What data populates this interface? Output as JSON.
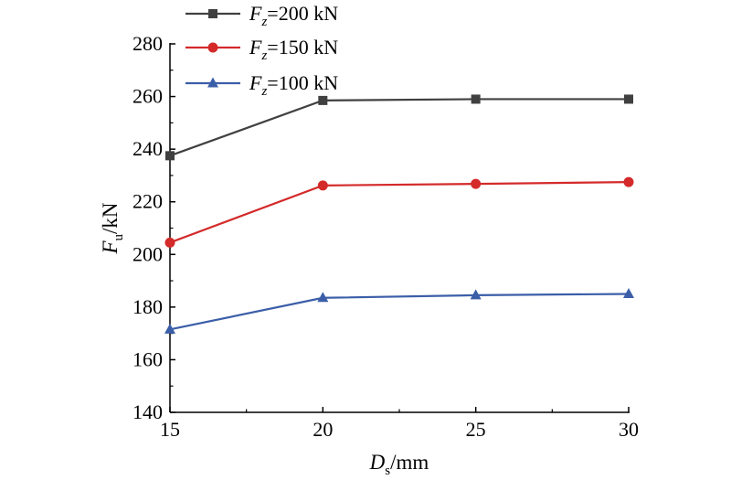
{
  "chart_data": {
    "type": "line",
    "x": [
      15,
      20,
      25,
      30
    ],
    "xlim": [
      15,
      30
    ],
    "ylim": [
      140,
      280
    ],
    "xticks": [
      "15",
      "20",
      "25",
      "30"
    ],
    "yticks": [
      "140",
      "160",
      "180",
      "200",
      "220",
      "240",
      "260",
      "280"
    ],
    "xlabel": {
      "main": "D",
      "sub": "s",
      "unit": "/mm"
    },
    "ylabel": {
      "main": "F",
      "sub": "u",
      "unit": "/kN"
    },
    "legend_position": "top-left",
    "grid": false,
    "series": [
      {
        "name": "Fz=200 kN",
        "label_main": "F",
        "label_sub": "z",
        "label_rest": "=200 kN",
        "color": "#404040",
        "marker": "square",
        "values": [
          237.5,
          258.5,
          259,
          259
        ]
      },
      {
        "name": "Fz=150 kN",
        "label_main": "F",
        "label_sub": "z",
        "label_rest": "=150 kN",
        "color": "#d42a2a",
        "marker": "circle",
        "values": [
          204.5,
          226.2,
          226.8,
          227.5
        ]
      },
      {
        "name": "Fz=100 kN",
        "label_main": "F",
        "label_sub": "z",
        "label_rest": "=100 kN",
        "color": "#3b5ea8",
        "marker": "triangle",
        "values": [
          171.5,
          183.5,
          184.5,
          185
        ]
      }
    ]
  }
}
